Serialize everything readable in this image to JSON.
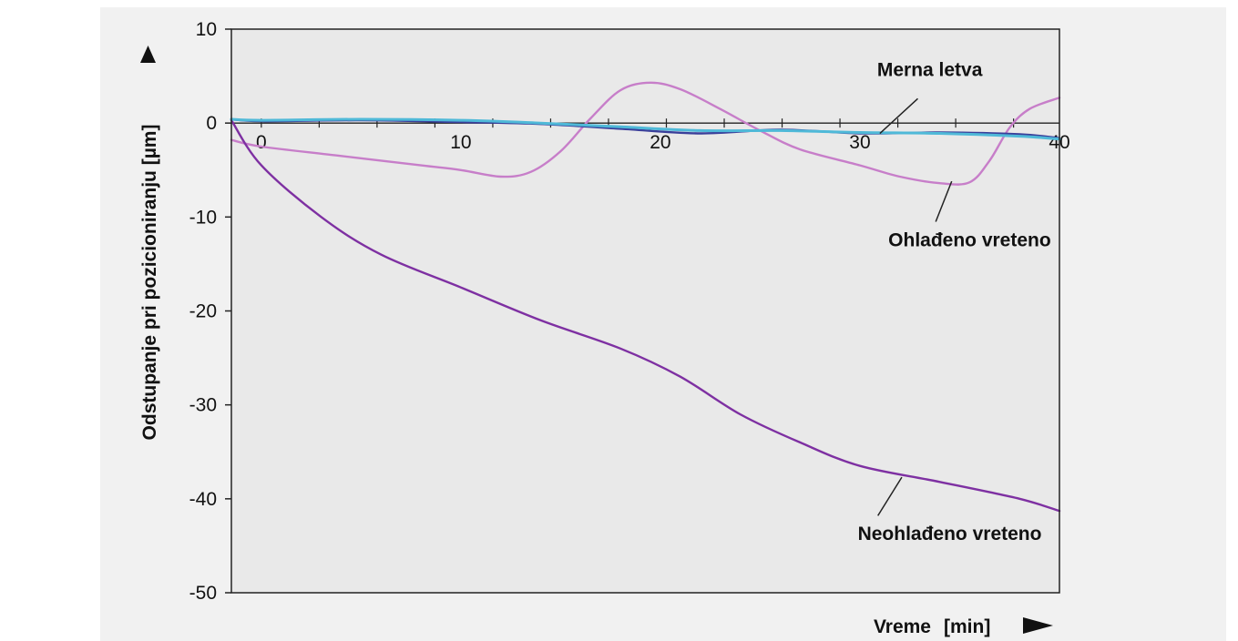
{
  "chart_data": {
    "type": "line",
    "xlabel": "Vreme",
    "xunit": "[min]",
    "ylabel": "Odstupanje pri pozicioniranju [µm]",
    "xlim": [
      -1.5,
      40
    ],
    "ylim": [
      -50,
      10
    ],
    "x_ticks": [
      0,
      10,
      20,
      30,
      40
    ],
    "y_ticks": [
      10,
      0,
      -10,
      -20,
      -30,
      -40,
      -50
    ],
    "grid": false,
    "series": [
      {
        "name": "Merna letva",
        "color": "#4fb9d8",
        "x": [
          -1.5,
          0,
          5,
          10,
          14,
          18,
          22,
          26,
          30,
          34,
          38,
          40
        ],
        "y": [
          0.4,
          0.3,
          0.4,
          0.3,
          0.0,
          -0.4,
          -0.8,
          -0.8,
          -1.0,
          -1.1,
          -1.4,
          -1.7
        ]
      },
      {
        "name": "",
        "color": "#3a3f9a",
        "x": [
          -1.5,
          0,
          5,
          10,
          14,
          18,
          22,
          26,
          30,
          34,
          38,
          40
        ],
        "y": [
          0.4,
          0.2,
          0.3,
          0.1,
          -0.1,
          -0.6,
          -1.1,
          -0.7,
          -1.1,
          -1.0,
          -1.2,
          -1.6
        ]
      },
      {
        "name": "Ohlađeno vreteno",
        "color": "#c77ec9",
        "x": [
          -1.5,
          0,
          4,
          8,
          10,
          12,
          13.5,
          15,
          16.5,
          18,
          19.5,
          21,
          23,
          25,
          27,
          30,
          32,
          34,
          35.5,
          36.5,
          37.5,
          38.5,
          40
        ],
        "y": [
          -1.8,
          -2.5,
          -3.5,
          -4.5,
          -5.0,
          -5.7,
          -5.2,
          -3.0,
          0.5,
          3.5,
          4.3,
          3.6,
          1.5,
          -0.8,
          -2.8,
          -4.5,
          -5.7,
          -6.4,
          -6.3,
          -4.0,
          -0.5,
          1.5,
          2.7
        ]
      },
      {
        "name": "Neohlađeno vreteno",
        "color": "#7e30a2",
        "x": [
          -1.5,
          0,
          3,
          6,
          10,
          14,
          18,
          21,
          24,
          27,
          30,
          34,
          38,
          40
        ],
        "y": [
          0.3,
          -4.5,
          -10,
          -14,
          -17.5,
          -21,
          -24,
          -27,
          -31,
          -34,
          -36.5,
          -38.2,
          -40,
          -41.3
        ]
      }
    ],
    "annotations": [
      {
        "text": "Merna letva",
        "x": 33.5,
        "y": 5.0,
        "leader_from": [
          32.9,
          2.6
        ],
        "leader_to": [
          31.0,
          -1.1
        ]
      },
      {
        "text": "Ohlađeno vreteno",
        "x": 35.5,
        "y": -13.1,
        "leader_from": [
          33.8,
          -10.5
        ],
        "leader_to": [
          34.6,
          -6.2
        ]
      },
      {
        "text": "Neohlađeno vreteno",
        "x": 34.5,
        "y": -44.4,
        "leader_from": [
          30.9,
          -41.8
        ],
        "leader_to": [
          32.1,
          -37.7
        ]
      }
    ]
  }
}
